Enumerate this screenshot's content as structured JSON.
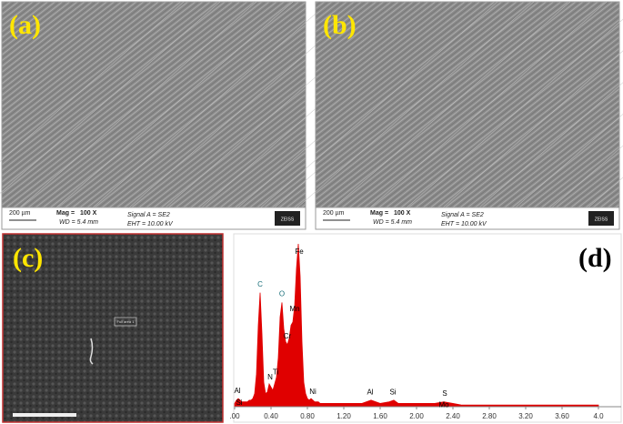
{
  "panels": [
    {
      "label": "(a)",
      "info": {
        "scale": "200 µm",
        "mag_label": "Mag =",
        "mag": "100 X",
        "wd": "WD = 5.4 mm",
        "signal": "Signal A = SE2",
        "eht": "EHT = 10.00 kV",
        "logo": "ZEISS"
      }
    },
    {
      "label": "(b)",
      "info": {
        "scale": "200 µm",
        "mag_label": "Mag =",
        "mag": "100 X",
        "wd": "WD = 5.4 mm",
        "signal": "Signal A = SE2",
        "eht": "EHT = 10.00 kV",
        "logo": "ZEISS"
      }
    },
    {
      "label": "(c)",
      "tag": "Full area 1"
    }
  ],
  "chart_data": {
    "type": "area",
    "label": "(d)",
    "color": "#e00000",
    "x": [
      0.0,
      0.02,
      0.04,
      0.06,
      0.08,
      0.1,
      0.12,
      0.14,
      0.16,
      0.18,
      0.2,
      0.22,
      0.24,
      0.26,
      0.28,
      0.3,
      0.32,
      0.34,
      0.36,
      0.38,
      0.4,
      0.42,
      0.44,
      0.46,
      0.48,
      0.5,
      0.52,
      0.54,
      0.56,
      0.58,
      0.6,
      0.62,
      0.64,
      0.66,
      0.68,
      0.7,
      0.72,
      0.74,
      0.76,
      0.78,
      0.8,
      0.82,
      0.84,
      0.86,
      0.88,
      0.9,
      0.92,
      0.94,
      0.96,
      0.98,
      1.0,
      1.1,
      1.2,
      1.3,
      1.4,
      1.5,
      1.6,
      1.7,
      1.75,
      1.8,
      1.9,
      2.0,
      2.1,
      2.2,
      2.3,
      2.4,
      2.5,
      2.6,
      2.8,
      3.0,
      3.2,
      3.4,
      3.6,
      3.8,
      4.0
    ],
    "values": [
      2,
      4,
      5,
      4,
      3,
      3,
      3,
      3,
      4,
      4,
      5,
      8,
      20,
      50,
      70,
      45,
      15,
      8,
      9,
      14,
      12,
      10,
      14,
      18,
      30,
      55,
      64,
      48,
      40,
      38,
      42,
      50,
      52,
      62,
      85,
      100,
      80,
      40,
      15,
      8,
      5,
      4,
      5,
      4,
      3,
      3,
      3,
      2,
      2,
      2,
      2,
      2,
      2,
      2,
      2,
      4,
      2,
      3,
      4,
      2,
      2,
      2,
      2,
      2,
      3,
      2,
      1,
      1,
      1,
      1,
      1,
      1,
      1,
      1,
      1
    ],
    "xlim": [
      0,
      4.0
    ],
    "ylim": [
      0,
      100
    ],
    "xticks": [
      {
        "value": 0,
        "label": ".00"
      },
      {
        "value": 0.4,
        "label": "0.40"
      },
      {
        "value": 0.8,
        "label": "0.80"
      },
      {
        "value": 1.2,
        "label": "1.20"
      },
      {
        "value": 1.6,
        "label": "1.60"
      },
      {
        "value": 2.0,
        "label": "2.00"
      },
      {
        "value": 2.4,
        "label": "2.40"
      },
      {
        "value": 2.8,
        "label": "2.80"
      },
      {
        "value": 3.2,
        "label": "3.20"
      },
      {
        "value": 3.6,
        "label": "3.60"
      },
      {
        "value": 4.0,
        "label": "4.0"
      }
    ],
    "annotations": [
      {
        "text": "Fe",
        "x": 0.71,
        "color": "#000000"
      },
      {
        "text": "C",
        "x": 0.28,
        "color": "#1a6f7a"
      },
      {
        "text": "O",
        "x": 0.52,
        "color": "#1a6f7a"
      },
      {
        "text": "Cr",
        "x": 0.58,
        "color": "#000000"
      },
      {
        "text": "Mn",
        "x": 0.66,
        "color": "#000000"
      },
      {
        "text": "N",
        "x": 0.39,
        "color": "#000000"
      },
      {
        "text": "Ti",
        "x": 0.45,
        "color": "#000000"
      },
      {
        "text": "Al",
        "x": 0.03,
        "color": "#000000"
      },
      {
        "text": "Si",
        "x": 0.05,
        "color": "#000000"
      },
      {
        "text": "Ni",
        "x": 0.86,
        "color": "#000000"
      },
      {
        "text": "Al",
        "x": 1.49,
        "color": "#000000"
      },
      {
        "text": "Si",
        "x": 1.74,
        "color": "#000000"
      },
      {
        "text": "S",
        "x": 2.31,
        "color": "#000000"
      },
      {
        "text": "Mo",
        "x": 2.3,
        "color": "#000000"
      }
    ]
  }
}
